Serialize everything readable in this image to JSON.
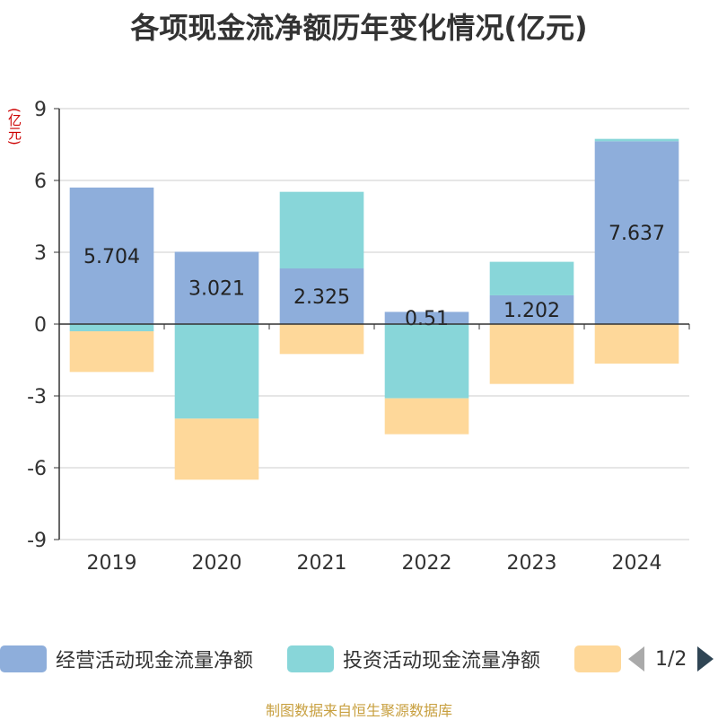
{
  "title": "各项现金流净额历年变化情况(亿元)",
  "unit_label": "(亿元)",
  "source_text": "制图数据来自恒生聚源数据库",
  "legend": {
    "items": [
      {
        "label": "经营活动现金流量净额",
        "color": "#8eaedb"
      },
      {
        "label": "投资活动现金流量净额",
        "color": "#88d6d9"
      },
      {
        "label": "",
        "color": "#fed89a"
      }
    ],
    "pager_text": "1/2"
  },
  "chart_data": {
    "type": "bar",
    "stacked": true,
    "categories": [
      "2019",
      "2020",
      "2021",
      "2022",
      "2023",
      "2024"
    ],
    "series": [
      {
        "name": "经营活动现金流量净额",
        "color": "#8eaedb",
        "values": [
          5.704,
          3.021,
          2.325,
          0.51,
          1.202,
          7.637
        ]
      },
      {
        "name": "投资活动现金流量净额",
        "color": "#88d6d9",
        "values": [
          -0.3,
          -3.95,
          3.2,
          -3.1,
          1.4,
          0.1
        ]
      },
      {
        "color": "#fed89a",
        "values": [
          -1.7,
          -2.55,
          -1.25,
          -1.5,
          -2.5,
          -1.65
        ]
      }
    ],
    "data_labels": [
      "5.704",
      "3.021",
      "2.325",
      "0.51",
      "1.202",
      "7.637"
    ],
    "ylim": [
      -9,
      9
    ],
    "yticks": [
      9,
      6,
      3,
      0,
      -3,
      -6,
      -9
    ],
    "grid": true
  }
}
